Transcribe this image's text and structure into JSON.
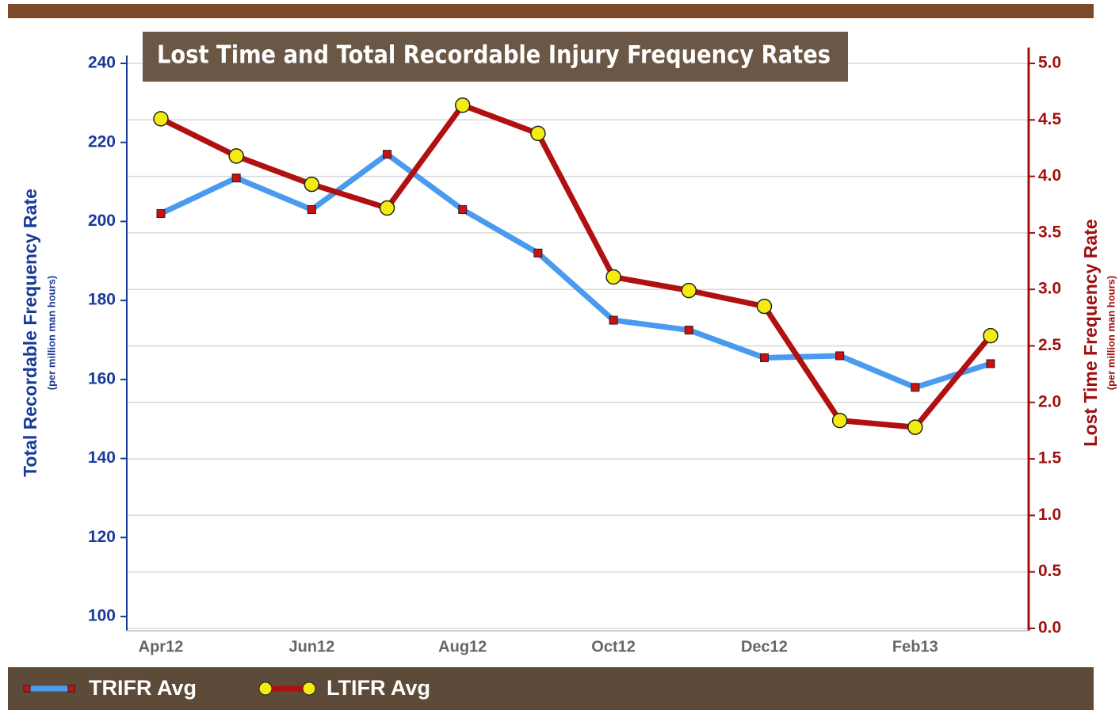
{
  "chart_data": {
    "type": "line",
    "title": "Lost Time and Total Recordable Injury Frequency Rates",
    "y_label": "Total Recordable Frequency Rate",
    "y_sublabel": "(per million man hours)",
    "y2_label": "Lost Time Frequency Rate",
    "y2_sublabel": "(per million man hours)",
    "categories": [
      "Apr12",
      null,
      "Jun12",
      null,
      "Aug12",
      null,
      "Oct12",
      null,
      "Dec12",
      null,
      "Feb13",
      null
    ],
    "ylim": [
      97,
      240
    ],
    "yticks": [
      100,
      120,
      140,
      160,
      180,
      200,
      220,
      240
    ],
    "y2lim": [
      0,
      5
    ],
    "y2ticks": [
      {
        "value": 0,
        "label": "0.0"
      },
      {
        "value": 0.5,
        "label": "0.5"
      },
      {
        "value": 1,
        "label": "1.0"
      },
      {
        "value": 1.5,
        "label": "1.5"
      },
      {
        "value": 2,
        "label": "2.0"
      },
      {
        "value": 2.5,
        "label": "2.5"
      },
      {
        "value": 3,
        "label": "3.0"
      },
      {
        "value": 3.5,
        "label": "3.5"
      },
      {
        "value": 4,
        "label": "4.0"
      },
      {
        "value": 4.5,
        "label": "4.5"
      },
      {
        "value": 5,
        "label": "5.0"
      }
    ],
    "grid": true,
    "series": [
      {
        "name": "TRIFR Avg",
        "color": "#4a9af0",
        "marker": "square",
        "marker_color": "#cc1010",
        "values": [
          202,
          211,
          203,
          217,
          203,
          192,
          175,
          172.5,
          165.5,
          166,
          158,
          164
        ]
      },
      {
        "name": "LTIFR Avg",
        "color": "#b01010",
        "marker": "circle",
        "marker_color": "#f4ec10",
        "axis": "y2",
        "values": [
          4.51,
          4.18,
          3.93,
          3.72,
          4.63,
          4.38,
          3.11,
          2.99,
          2.85,
          1.84,
          1.78,
          2.59
        ]
      }
    ]
  }
}
